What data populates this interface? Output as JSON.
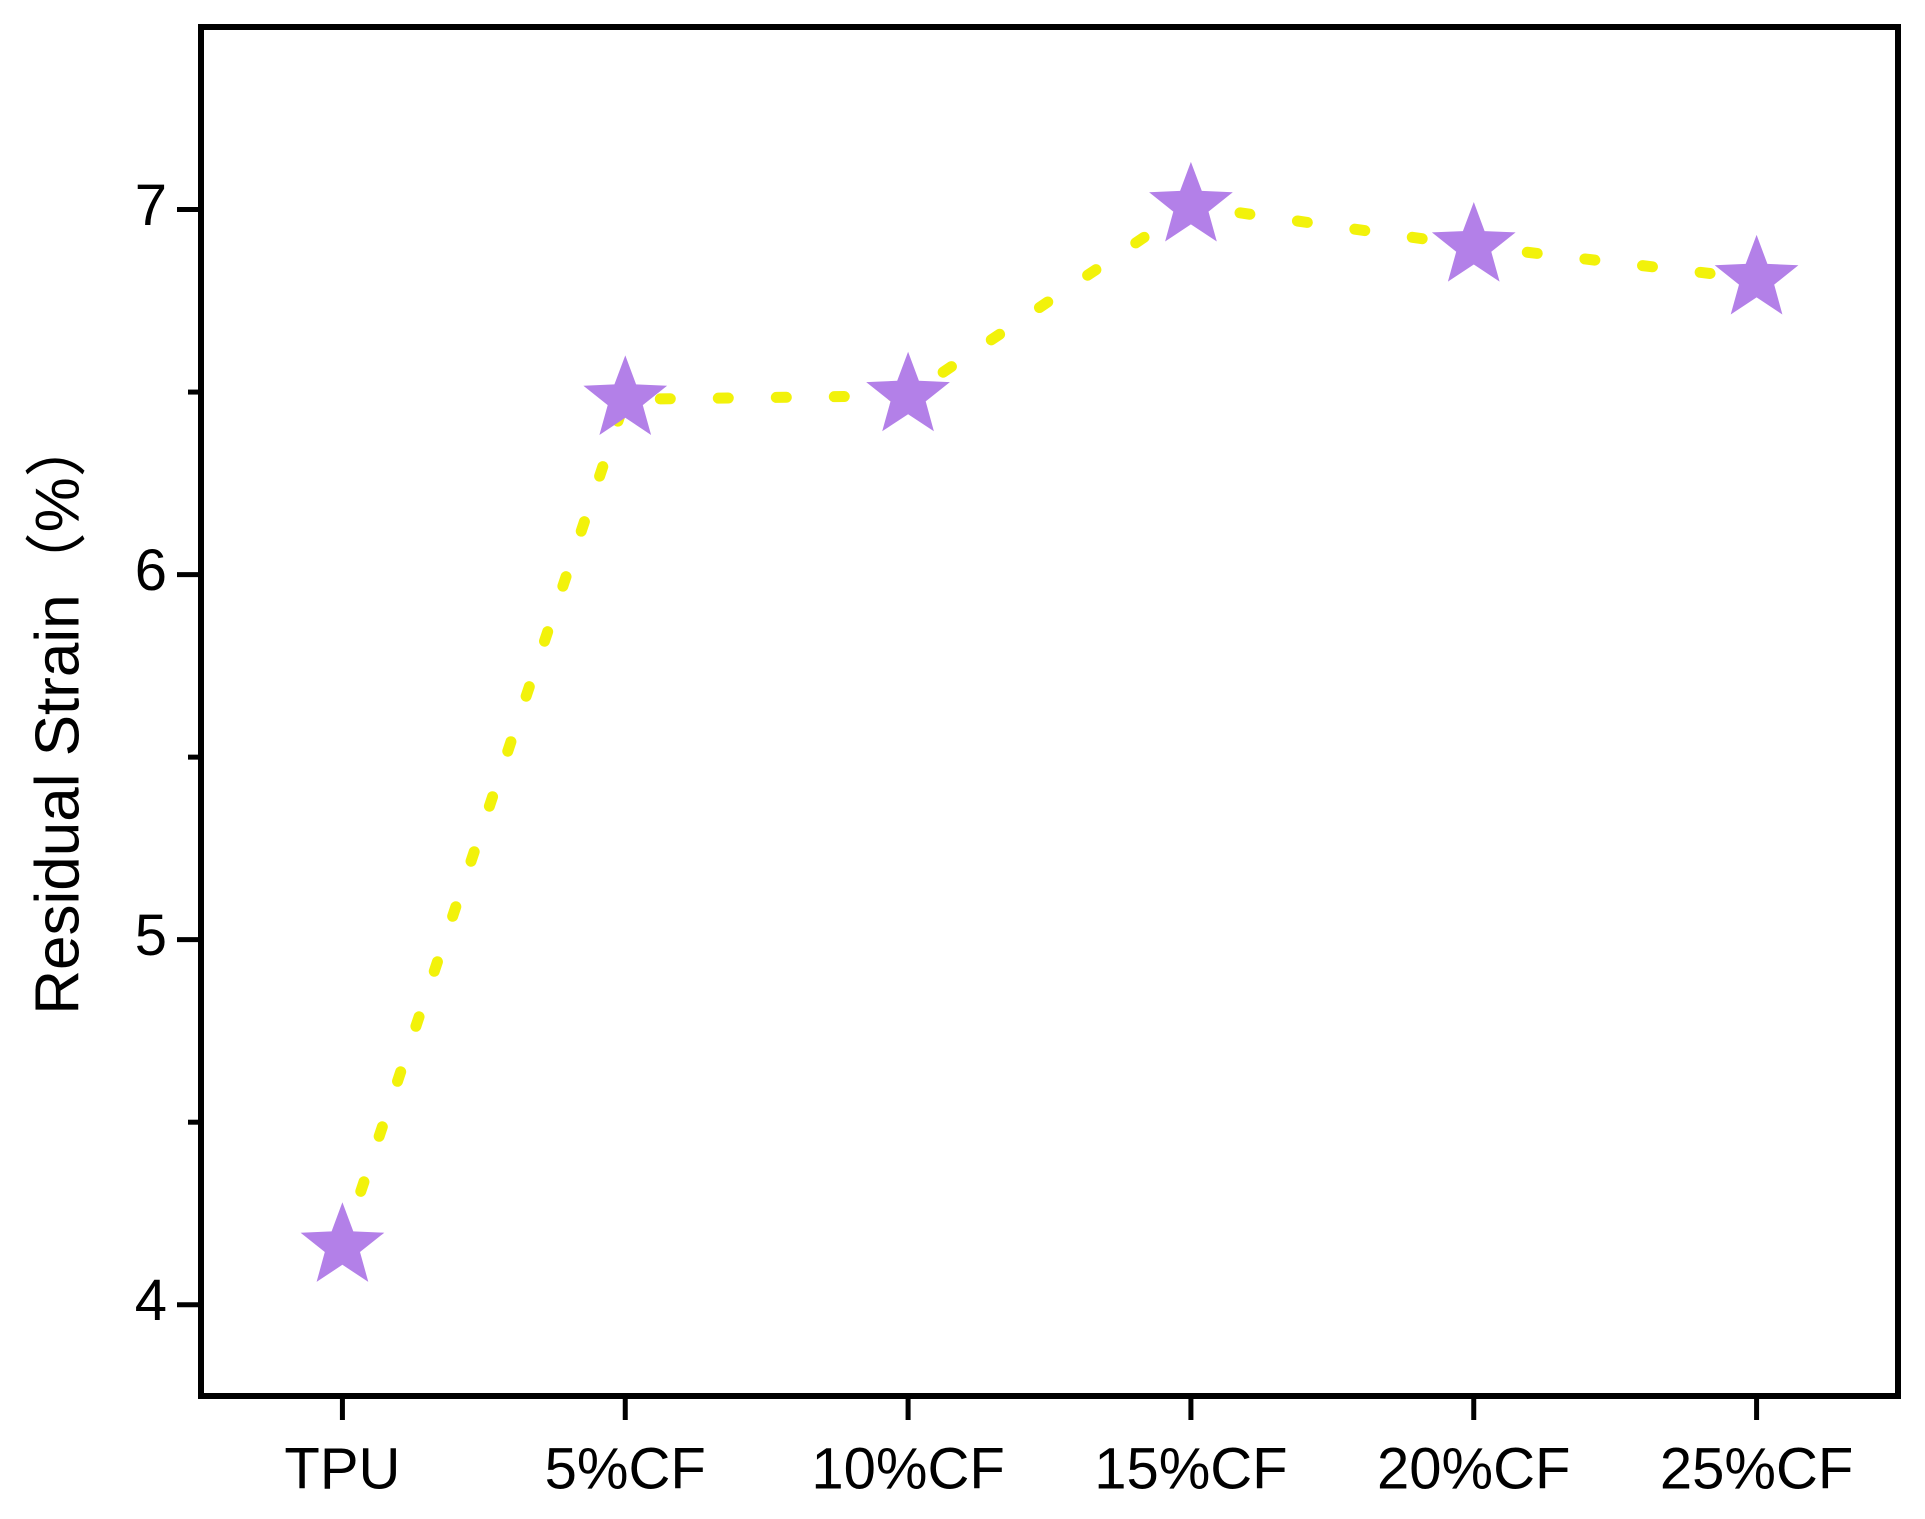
{
  "chart_data": {
    "type": "line",
    "ylabel": "Residual Strain（%）",
    "categories": [
      "TPU",
      "5%CF",
      "10%CF",
      "15%CF",
      "20%CF",
      "25%CF"
    ],
    "series": [
      {
        "color": "#b380e8",
        "line_color": "#f2f20a",
        "marker": "star",
        "line_style": "dotted",
        "values": [
          4.16,
          6.48,
          6.49,
          7.01,
          6.9,
          6.81
        ]
      }
    ],
    "ylim": [
      3.75,
      7.5
    ],
    "yticks": [
      4,
      5,
      6,
      7
    ],
    "yticks_minor": [
      4.5,
      5.5,
      6.5
    ],
    "grid": false
  }
}
